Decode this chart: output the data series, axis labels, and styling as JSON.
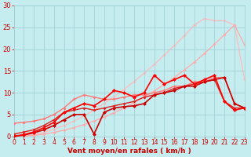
{
  "xlabel": "Vent moyen/en rafales ( km/h )",
  "xlim": [
    0,
    23
  ],
  "ylim": [
    0,
    30
  ],
  "xticks": [
    0,
    1,
    2,
    3,
    4,
    5,
    6,
    7,
    8,
    9,
    10,
    11,
    12,
    13,
    14,
    15,
    16,
    17,
    18,
    19,
    20,
    21,
    22,
    23
  ],
  "yticks": [
    0,
    5,
    10,
    15,
    20,
    25,
    30
  ],
  "background_color": "#c5ecee",
  "grid_color": "#9dcdd4",
  "series": [
    {
      "x": [
        0,
        1,
        2,
        3,
        4,
        5,
        6,
        7,
        8,
        9,
        10,
        11,
        12,
        13,
        14,
        15,
        16,
        17,
        18,
        19,
        20,
        21,
        22,
        23
      ],
      "y": [
        0,
        0.05,
        0.2,
        0.5,
        0.9,
        1.4,
        2.0,
        2.7,
        3.5,
        4.4,
        5.4,
        6.5,
        7.7,
        9.0,
        10.4,
        11.9,
        13.5,
        15.2,
        17.0,
        19.0,
        21.1,
        23.3,
        25.5,
        21.0
      ],
      "color": "#ffaaaa",
      "linewidth": 0.9,
      "marker": "D",
      "markersize": 2.0,
      "zorder": 2
    },
    {
      "x": [
        0,
        1,
        2,
        3,
        4,
        5,
        6,
        7,
        8,
        9,
        10,
        11,
        12,
        13,
        14,
        15,
        16,
        17,
        18,
        19,
        20,
        21,
        22,
        23
      ],
      "y": [
        0,
        0.1,
        0.4,
        0.9,
        1.6,
        2.5,
        3.5,
        4.7,
        6.0,
        7.5,
        9.1,
        10.8,
        12.6,
        14.5,
        16.5,
        18.6,
        20.8,
        23.1,
        25.5,
        27.0,
        26.5,
        26.5,
        25.5,
        13.0
      ],
      "color": "#ffbbbb",
      "linewidth": 0.9,
      "marker": "D",
      "markersize": 2.0,
      "zorder": 1
    },
    {
      "x": [
        0,
        1,
        2,
        3,
        4,
        5,
        6,
        7,
        8,
        9,
        10,
        11,
        12,
        13,
        14,
        15,
        16,
        17,
        18,
        19,
        20,
        21,
        22,
        23
      ],
      "y": [
        3,
        3.2,
        3.5,
        4.0,
        5.0,
        6.5,
        8.5,
        9.5,
        9.0,
        8.5,
        8.5,
        9.0,
        9.5,
        9.5,
        10.0,
        10.5,
        11.5,
        11.5,
        12.5,
        12.5,
        13.5,
        13.5,
        7.5,
        6.5
      ],
      "color": "#ff7777",
      "linewidth": 1.0,
      "marker": "D",
      "markersize": 2.0,
      "zorder": 3
    },
    {
      "x": [
        0,
        1,
        2,
        3,
        4,
        5,
        6,
        7,
        8,
        9,
        10,
        11,
        12,
        13,
        14,
        15,
        16,
        17,
        18,
        19,
        20,
        21,
        22,
        23
      ],
      "y": [
        0,
        0.3,
        0.8,
        1.5,
        2.5,
        3.8,
        5.0,
        5.0,
        0.5,
        5.5,
        6.5,
        6.8,
        7.0,
        7.5,
        9.5,
        10.0,
        10.5,
        11.5,
        11.5,
        12.5,
        13.0,
        13.5,
        7.5,
        6.5
      ],
      "color": "#cc0000",
      "linewidth": 1.2,
      "marker": "D",
      "markersize": 2.5,
      "zorder": 5
    },
    {
      "x": [
        0,
        1,
        2,
        3,
        4,
        5,
        6,
        7,
        8,
        9,
        10,
        11,
        12,
        13,
        14,
        15,
        16,
        17,
        18,
        19,
        20,
        21,
        22,
        23
      ],
      "y": [
        0,
        0.4,
        1.0,
        2.0,
        3.2,
        5.5,
        6.5,
        7.5,
        7.0,
        8.5,
        10.5,
        10.0,
        9.0,
        10.0,
        14.0,
        12.0,
        13.0,
        14.0,
        12.0,
        13.0,
        14.0,
        8.0,
        6.0,
        6.5
      ],
      "color": "#ff0000",
      "linewidth": 1.2,
      "marker": "D",
      "markersize": 2.5,
      "zorder": 6
    },
    {
      "x": [
        0,
        1,
        2,
        3,
        4,
        5,
        6,
        7,
        8,
        9,
        10,
        11,
        12,
        13,
        14,
        15,
        16,
        17,
        18,
        19,
        20,
        21,
        22,
        23
      ],
      "y": [
        0.5,
        1.0,
        1.5,
        2.5,
        3.8,
        5.5,
        6.0,
        6.5,
        6.0,
        6.5,
        7.0,
        7.5,
        8.0,
        9.0,
        9.5,
        10.0,
        11.0,
        11.5,
        12.0,
        12.5,
        13.0,
        8.0,
        6.5,
        6.5
      ],
      "color": "#dd2222",
      "linewidth": 1.0,
      "marker": "D",
      "markersize": 2.0,
      "zorder": 4
    }
  ],
  "xlabel_color": "#cc0000",
  "xlabel_fontsize": 6.5,
  "tick_color": "#cc0000",
  "tick_fontsize": 5.5,
  "ytick_fontsize": 6.0
}
